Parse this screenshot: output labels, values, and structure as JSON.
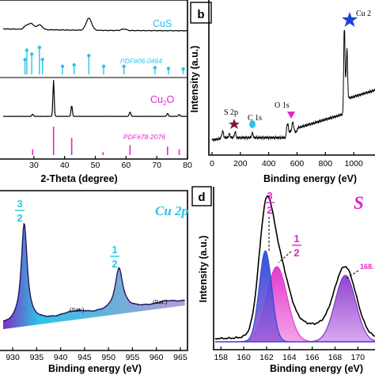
{
  "colors": {
    "cyan": "#2ec4e6",
    "magenta": "#e026c9",
    "blue": "#1a45d6",
    "purple": "#7a2eb8",
    "black": "#000000",
    "dark_red": "#7a1a3a"
  },
  "chart_data": [
    {
      "panel": "a",
      "type": "line",
      "xlabel": "2-Theta (degree)",
      "xlim": [
        20,
        80
      ],
      "xticks": [
        30,
        40,
        50,
        60,
        70,
        80
      ],
      "series": [
        {
          "name": "CuS",
          "x": [
            20,
            25,
            27.7,
            29.3,
            31.8,
            34,
            38,
            43,
            47.9,
            50,
            55,
            59.3,
            65,
            73,
            78
          ],
          "y": [
            0.62,
            0.68,
            0.82,
            0.86,
            0.84,
            0.72,
            0.68,
            0.66,
            1.0,
            0.7,
            0.62,
            0.6,
            0.58,
            0.56,
            0.55
          ]
        },
        {
          "name": "Cu2O",
          "x": [
            20,
            29.6,
            33,
            36.4,
            38,
            42.3,
            45,
            61.3,
            65,
            73.5,
            77.3,
            80
          ],
          "y": [
            0.02,
            0.06,
            0.02,
            1.0,
            0.02,
            0.3,
            0.02,
            0.12,
            0.02,
            0.08,
            0.05,
            0.02
          ]
        }
      ],
      "references": [
        {
          "name": "PDF#06-0464",
          "x": [
            27.1,
            27.7,
            29.3,
            31.8,
            32.8,
            39.3,
            43.1,
            47.9,
            52.7,
            59.3,
            69.4,
            73.8,
            78.6
          ]
        },
        {
          "name": "PDF#78-2076",
          "x": [
            29.6,
            36.4,
            42.3,
            52.5,
            61.3,
            73.5,
            77.3
          ]
        }
      ],
      "legend": {
        "CuS": "CuS",
        "Cu2O_base": "Cu",
        "Cu2O_sub": "2",
        "Cu2O_tail": "O"
      }
    },
    {
      "panel": "b",
      "type": "line",
      "xlabel": "Binding energy (eV)",
      "ylabel": "Intensity (a.u.)",
      "xlim": [
        0,
        1150
      ],
      "xticks": [
        0,
        200,
        400,
        600,
        800,
        1000
      ],
      "annotations": [
        {
          "label": "S 2p",
          "x": 163
        },
        {
          "label": "C 1s",
          "x": 285
        },
        {
          "label": "O 1s",
          "x": 531
        },
        {
          "label": "Cu 2",
          "x": 933
        }
      ]
    },
    {
      "panel": "c",
      "type": "line",
      "title": "Cu 2p",
      "xlabel": "Binding energy (eV)",
      "xlim": [
        928,
        966
      ],
      "xticks": [
        930,
        935,
        940,
        945,
        950,
        955,
        960,
        965
      ],
      "peaks": [
        {
          "label_num": "3",
          "label_den": "2",
          "x": 932.4
        },
        {
          "label_num": "1",
          "label_den": "2",
          "x": 952.2
        }
      ],
      "satellites": [
        "(Sat.)",
        "(Sat.)"
      ]
    },
    {
      "panel": "d",
      "type": "line",
      "title": "S",
      "xlabel": "Binding energy (eV)",
      "ylabel": "Intensity (a.u.)",
      "xlim": [
        157.5,
        171.5
      ],
      "xticks": [
        158,
        160,
        162,
        164,
        166,
        168,
        170
      ],
      "peaks": [
        {
          "label_num": "3",
          "label_den": "2",
          "x": 161.9
        },
        {
          "label_num": "1",
          "label_den": "2",
          "x": 163.0
        },
        {
          "label": "168.",
          "x": 168.9
        }
      ]
    }
  ],
  "panels": {
    "a": {
      "legend_cus": "CuS",
      "ref1": "PDF#06-0464",
      "cu2o_base": "Cu",
      "cu2o_sub": "2",
      "cu2o_tail": "O",
      "ref2": "PDF#78-2076",
      "xlabel": "2-Theta (degree)"
    },
    "b": {
      "letter": "b",
      "ylabel": "Intensity (a.u.)",
      "xlabel": "Binding energy (eV)",
      "s2p": "S 2p",
      "c1s": "C 1s",
      "o1s": "O 1s",
      "cu2": "Cu 2"
    },
    "c": {
      "title": "Cu 2p",
      "xlabel": "Binding energy (eV)",
      "n1": "3",
      "d1": "2",
      "n2": "1",
      "d2": "2",
      "sat1": "(Sat.)",
      "sat2": "(Sat.)"
    },
    "d": {
      "letter": "d",
      "title": "S",
      "ylabel": "Intensity (a.u.)",
      "xlabel": "Binding energy (eV)",
      "n1": "3",
      "d1": "2",
      "n2": "1",
      "d2": "2",
      "peak3": "168."
    }
  }
}
